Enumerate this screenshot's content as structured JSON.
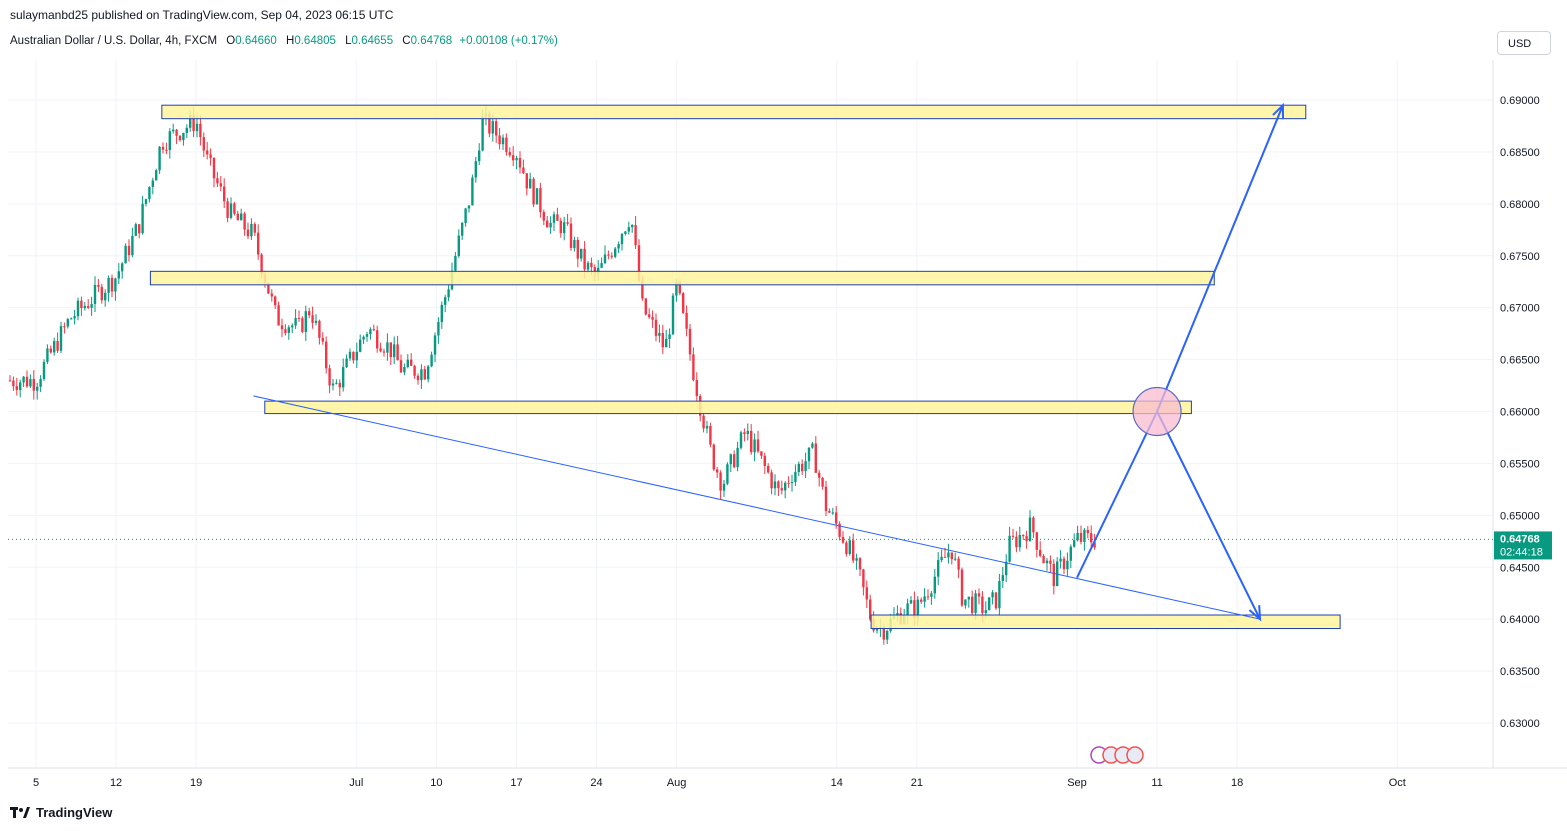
{
  "header": {
    "publish_line": "sulaymanbd25 published on TradingView.com, Sep 04, 2023 06:15 UTC",
    "symbol": "Australian Dollar / U.S. Dollar, 4h, FXCM",
    "open_label": "O",
    "open": "0.64660",
    "high_label": "H",
    "high": "0.64805",
    "low_label": "L",
    "low": "0.64655",
    "close_label": "C",
    "close": "0.64768",
    "change": "+0.00108 (+0.17%)",
    "currency": "USD"
  },
  "price_tag": {
    "price": "0.64768",
    "countdown": "02:44:18"
  },
  "footer": {
    "brand": "TradingView"
  },
  "colors": {
    "up": "#089981",
    "down": "#f23645",
    "zone_fill": "#fff59d",
    "zone_border": "#1e40af",
    "drawing": "#2962ff",
    "grid": "#f0f3fa"
  },
  "chart_data": {
    "type": "candlestick",
    "timeframe": "4h",
    "y_ticks": [
      "0.69000",
      "0.68500",
      "0.68000",
      "0.67500",
      "0.67000",
      "0.66500",
      "0.66000",
      "0.65500",
      "0.65000",
      "0.64500",
      "0.64000",
      "0.63500",
      "0.63000"
    ],
    "ylim": [
      0.6275,
      0.6915
    ],
    "x_ticks": [
      "5",
      "12",
      "19",
      "Jul",
      "10",
      "17",
      "24",
      "Aug",
      "14",
      "21",
      "Sep",
      "11",
      "18",
      "Oct"
    ],
    "x_tick_dates": [
      "2023-06-05",
      "2023-06-12",
      "2023-06-19",
      "2023-07-03",
      "2023-07-10",
      "2023-07-17",
      "2023-07-24",
      "2023-07-31",
      "2023-08-14",
      "2023-08-21",
      "2023-09-04",
      "2023-09-11",
      "2023-09-18",
      "2023-10-02"
    ],
    "close_path": [
      [
        "2023-06-05",
        0.663
      ],
      [
        "2023-06-06",
        0.665
      ],
      [
        "2023-06-08",
        0.669
      ],
      [
        "2023-06-12",
        0.673
      ],
      [
        "2023-06-14",
        0.678
      ],
      [
        "2023-06-16",
        0.686
      ],
      [
        "2023-06-19",
        0.688
      ],
      [
        "2023-06-20",
        0.684
      ],
      [
        "2023-06-22",
        0.679
      ],
      [
        "2023-06-24",
        0.677
      ],
      [
        "2023-06-25",
        0.673
      ],
      [
        "2023-06-26",
        0.669
      ],
      [
        "2023-06-28",
        0.668
      ],
      [
        "2023-06-29",
        0.67
      ],
      [
        "2023-07-01",
        0.662
      ],
      [
        "2023-07-02",
        0.664
      ],
      [
        "2023-07-04",
        0.668
      ],
      [
        "2023-07-06",
        0.666
      ],
      [
        "2023-07-07",
        0.664
      ],
      [
        "2023-07-09",
        0.664
      ],
      [
        "2023-07-10",
        0.668
      ],
      [
        "2023-07-11",
        0.672
      ],
      [
        "2023-07-13",
        0.681
      ],
      [
        "2023-07-14",
        0.688
      ],
      [
        "2023-07-17",
        0.685
      ],
      [
        "2023-07-18",
        0.682
      ],
      [
        "2023-07-20",
        0.678
      ],
      [
        "2023-07-21",
        0.678
      ],
      [
        "2023-07-23",
        0.674
      ],
      [
        "2023-07-24",
        0.673
      ],
      [
        "2023-07-26",
        0.677
      ],
      [
        "2023-07-27",
        0.679
      ],
      [
        "2023-07-28",
        0.67
      ],
      [
        "2023-07-30",
        0.666
      ],
      [
        "2023-07-31",
        0.672
      ],
      [
        "2023-08-02",
        0.661
      ],
      [
        "2023-08-03",
        0.656
      ],
      [
        "2023-08-04",
        0.653
      ],
      [
        "2023-08-06",
        0.658
      ],
      [
        "2023-08-07",
        0.656
      ],
      [
        "2023-08-09",
        0.652
      ],
      [
        "2023-08-10",
        0.654
      ],
      [
        "2023-08-12",
        0.656
      ],
      [
        "2023-08-13",
        0.651
      ],
      [
        "2023-08-15",
        0.647
      ],
      [
        "2023-08-16",
        0.644
      ],
      [
        "2023-08-17",
        0.64
      ],
      [
        "2023-08-18",
        0.639
      ],
      [
        "2023-08-20",
        0.641
      ],
      [
        "2023-08-21",
        0.641
      ],
      [
        "2023-08-22",
        0.643
      ],
      [
        "2023-08-24",
        0.647
      ],
      [
        "2023-08-25",
        0.642
      ],
      [
        "2023-08-27",
        0.641
      ],
      [
        "2023-08-28",
        0.642
      ],
      [
        "2023-08-29",
        0.647
      ],
      [
        "2023-08-31",
        0.649
      ],
      [
        "2023-09-01",
        0.646
      ],
      [
        "2023-09-02",
        0.644
      ],
      [
        "2023-09-04",
        0.6477
      ]
    ],
    "zones": [
      {
        "from": "2023-06-16",
        "to": "2023-09-24",
        "top": 0.6895,
        "bottom": 0.6882
      },
      {
        "from": "2023-06-15",
        "to": "2023-09-16",
        "top": 0.6735,
        "bottom": 0.6722
      },
      {
        "from": "2023-06-25",
        "to": "2023-09-14",
        "top": 0.661,
        "bottom": 0.6598
      },
      {
        "from": "2023-08-17",
        "to": "2023-09-27",
        "top": 0.6404,
        "bottom": 0.6391
      }
    ],
    "trendline": {
      "from": [
        "2023-06-24",
        0.6615
      ],
      "to": [
        "2023-09-20",
        0.64
      ]
    },
    "projection": [
      [
        "2023-09-04",
        0.644
      ],
      [
        "2023-09-11",
        0.66
      ],
      [
        "2023-09-22",
        0.6895
      ]
    ],
    "projection_down": [
      [
        "2023-09-11",
        0.66
      ],
      [
        "2023-09-20",
        0.64
      ]
    ],
    "last_price": 0.64768
  }
}
